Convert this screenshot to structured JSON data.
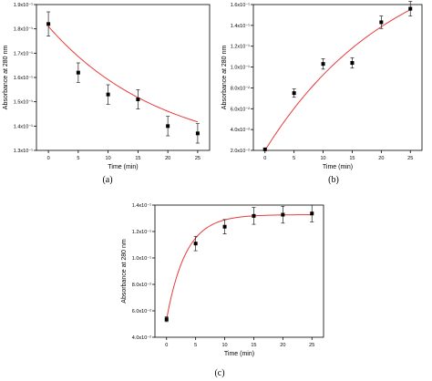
{
  "chart_data": [
    {
      "type": "scatter",
      "panel": "(a)",
      "xlabel": "Time (min)",
      "ylabel": "Absorbance at 280 nm",
      "x_ticks": [
        0,
        5,
        10,
        15,
        20,
        25
      ],
      "y_ticks": [
        "1.3x10⁻¹",
        "1.4x10⁻¹",
        "1.5x10⁻¹",
        "1.6x10⁻¹",
        "1.7x10⁻¹",
        "1.8x10⁻¹",
        "1.9x10⁻¹"
      ],
      "xlim": [
        -2,
        27
      ],
      "ylim": [
        0.13,
        0.19
      ],
      "x": [
        0,
        5,
        10,
        15,
        20,
        25
      ],
      "y": [
        0.182,
        0.162,
        0.153,
        0.151,
        0.14,
        0.137
      ],
      "yerr": [
        0.005,
        0.004,
        0.004,
        0.004,
        0.004,
        0.004
      ],
      "fit": {
        "type": "exponential-decay",
        "y0": 0.127,
        "A": 0.054,
        "k": 0.052
      },
      "colors": {
        "fit": "#e83a3a",
        "points": "#000000"
      }
    },
    {
      "type": "scatter",
      "panel": "(b)",
      "xlabel": "Time (min)",
      "ylabel": "Absorbance at 280 nm",
      "x_ticks": [
        0,
        5,
        10,
        15,
        20,
        25
      ],
      "y_ticks": [
        "2.0x10⁻²",
        "4.0x10⁻²",
        "6.0x10⁻²",
        "8.0x10⁻²",
        "1.0x10⁻¹",
        "1.2x10⁻¹",
        "1.4x10⁻¹",
        "1.6x10⁻¹"
      ],
      "xlim": [
        -2,
        27
      ],
      "ylim": [
        0.02,
        0.16
      ],
      "x": [
        0,
        5,
        10,
        15,
        20,
        25
      ],
      "y": [
        0.021,
        0.075,
        0.103,
        0.104,
        0.143,
        0.156
      ],
      "yerr": [
        0.0,
        0.004,
        0.005,
        0.005,
        0.006,
        0.007
      ],
      "fit": {
        "type": "exponential-rise",
        "y0": 0.22,
        "A": 0.2,
        "k": 0.045
      },
      "colors": {
        "fit": "#e83a3a",
        "points": "#000000"
      }
    },
    {
      "type": "scatter",
      "panel": "(c)",
      "xlabel": "Time (min)",
      "ylabel": "Absorbance at 280 nm",
      "x_ticks": [
        0,
        5,
        10,
        15,
        20,
        25
      ],
      "y_ticks": [
        "4.0x10⁻²",
        "6.0x10⁻²",
        "8.0x10⁻²",
        "1.0x10⁻¹",
        "1.2x10⁻¹",
        "1.4x10⁻¹"
      ],
      "xlim": [
        -2,
        27
      ],
      "ylim": [
        0.03,
        0.14
      ],
      "x": [
        0,
        5,
        10,
        15,
        20,
        25
      ],
      "y": [
        0.045,
        0.108,
        0.122,
        0.131,
        0.132,
        0.133
      ],
      "yerr": [
        0.002,
        0.006,
        0.006,
        0.007,
        0.007,
        0.007
      ],
      "fit": {
        "type": "exponential-rise",
        "y0": 0.132,
        "A": 0.087,
        "k": 0.3
      },
      "colors": {
        "fit": "#e83a3a",
        "points": "#000000"
      }
    }
  ]
}
